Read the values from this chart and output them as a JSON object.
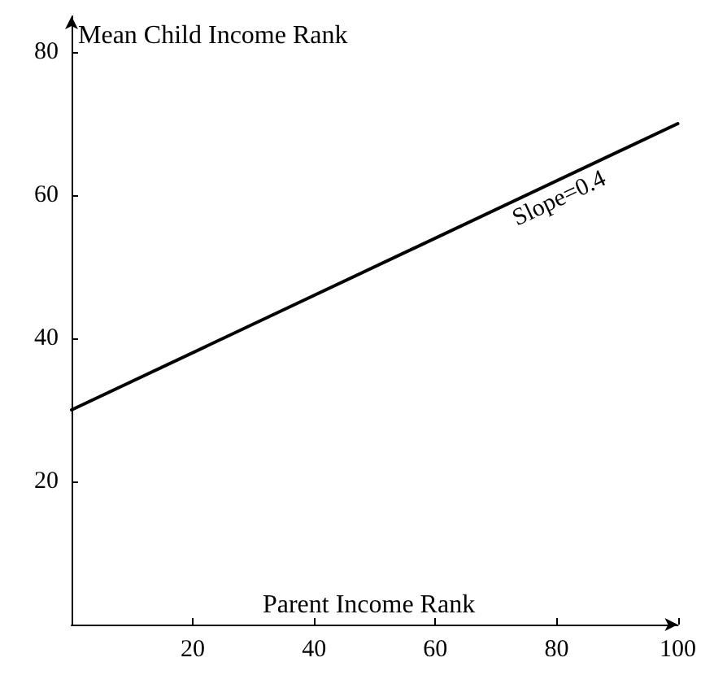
{
  "chart_data": {
    "type": "line",
    "xlabel": "Parent Income Rank",
    "ylabel": "Mean Child Income Rank",
    "x": [
      0,
      100
    ],
    "series": [
      {
        "color": "#000000",
        "values": [
          30,
          70
        ]
      }
    ],
    "xlim": [
      0,
      100
    ],
    "xticks": [
      20,
      40,
      60,
      80,
      100
    ],
    "ylim": [
      0,
      85
    ],
    "yticks": [
      20,
      40,
      60,
      80
    ],
    "annotations": [
      {
        "text": "Slope=0.4",
        "x": 78,
        "y": 61.2
      }
    ],
    "grid": false,
    "marker": "none",
    "line_style": "solid"
  }
}
